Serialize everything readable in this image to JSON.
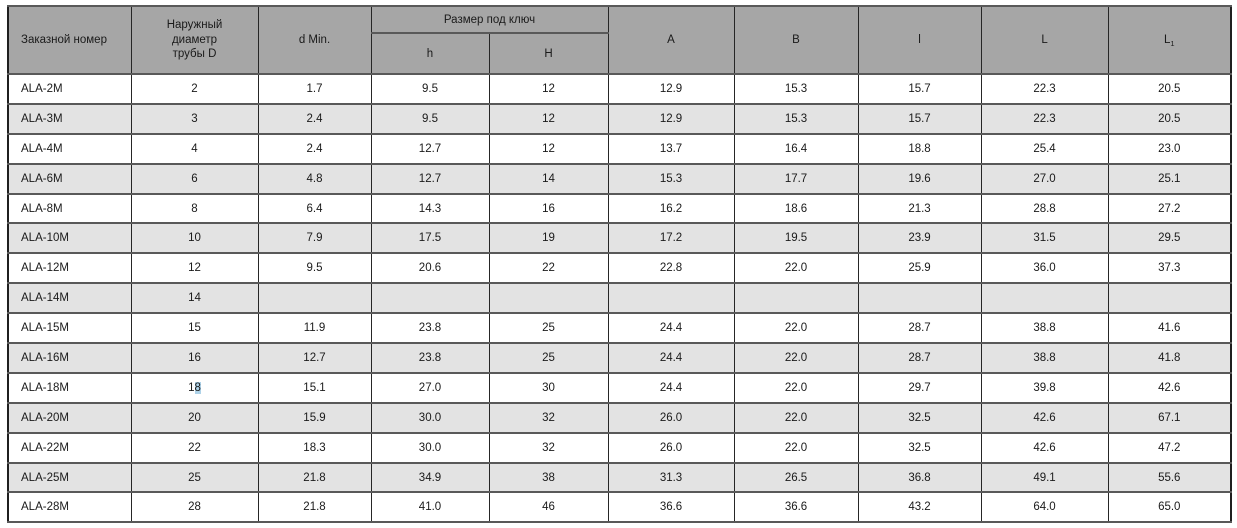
{
  "colors": {
    "header_bg": "#a6a6a6",
    "stripe_bg": "#e3e3e3",
    "selection_bg": "#aed2e8"
  },
  "table": {
    "header": {
      "order": "Заказной номер",
      "diameter": "Наружный\nдиаметр\nтрубы D",
      "d_min": "d Min.",
      "wrench_group": "Размер под ключ",
      "h": "h",
      "H": "H",
      "A": "A",
      "B": "B",
      "l": "l",
      "L": "L",
      "L1_base": "L",
      "L1_sub": "1"
    },
    "col_keys": [
      "order",
      "D",
      "d_min",
      "h",
      "H",
      "A",
      "B",
      "l",
      "L",
      "L1"
    ],
    "selection": {
      "row_order": "ALA-18M",
      "col": "D",
      "before": "1",
      "selected": "8",
      "after": ""
    },
    "rows": [
      {
        "order": "ALA-2M",
        "D": "2",
        "d_min": "1.7",
        "h": "9.5",
        "H": "12",
        "A": "12.9",
        "B": "15.3",
        "l": "15.7",
        "L": "22.3",
        "L1": "20.5"
      },
      {
        "order": "ALA-3M",
        "D": "3",
        "d_min": "2.4",
        "h": "9.5",
        "H": "12",
        "A": "12.9",
        "B": "15.3",
        "l": "15.7",
        "L": "22.3",
        "L1": "20.5"
      },
      {
        "order": "ALA-4M",
        "D": "4",
        "d_min": "2.4",
        "h": "12.7",
        "H": "12",
        "A": "13.7",
        "B": "16.4",
        "l": "18.8",
        "L": "25.4",
        "L1": "23.0"
      },
      {
        "order": "ALA-6M",
        "D": "6",
        "d_min": "4.8",
        "h": "12.7",
        "H": "14",
        "A": "15.3",
        "B": "17.7",
        "l": "19.6",
        "L": "27.0",
        "L1": "25.1"
      },
      {
        "order": "ALA-8M",
        "D": "8",
        "d_min": "6.4",
        "h": "14.3",
        "H": "16",
        "A": "16.2",
        "B": "18.6",
        "l": "21.3",
        "L": "28.8",
        "L1": "27.2"
      },
      {
        "order": "ALA-10M",
        "D": "10",
        "d_min": "7.9",
        "h": "17.5",
        "H": "19",
        "A": "17.2",
        "B": "19.5",
        "l": "23.9",
        "L": "31.5",
        "L1": "29.5"
      },
      {
        "order": "ALA-12M",
        "D": "12",
        "d_min": "9.5",
        "h": "20.6",
        "H": "22",
        "A": "22.8",
        "B": "22.0",
        "l": "25.9",
        "L": "36.0",
        "L1": "37.3"
      },
      {
        "order": "ALA-14M",
        "D": "14",
        "d_min": "",
        "h": "",
        "H": "",
        "A": "",
        "B": "",
        "l": "",
        "L": "",
        "L1": ""
      },
      {
        "order": "ALA-15M",
        "D": "15",
        "d_min": "11.9",
        "h": "23.8",
        "H": "25",
        "A": "24.4",
        "B": "22.0",
        "l": "28.7",
        "L": "38.8",
        "L1": "41.6"
      },
      {
        "order": "ALA-16M",
        "D": "16",
        "d_min": "12.7",
        "h": "23.8",
        "H": "25",
        "A": "24.4",
        "B": "22.0",
        "l": "28.7",
        "L": "38.8",
        "L1": "41.8"
      },
      {
        "order": "ALA-18M",
        "D": "18",
        "d_min": "15.1",
        "h": "27.0",
        "H": "30",
        "A": "24.4",
        "B": "22.0",
        "l": "29.7",
        "L": "39.8",
        "L1": "42.6"
      },
      {
        "order": "ALA-20M",
        "D": "20",
        "d_min": "15.9",
        "h": "30.0",
        "H": "32",
        "A": "26.0",
        "B": "22.0",
        "l": "32.5",
        "L": "42.6",
        "L1": "67.1"
      },
      {
        "order": "ALA-22M",
        "D": "22",
        "d_min": "18.3",
        "h": "30.0",
        "H": "32",
        "A": "26.0",
        "B": "22.0",
        "l": "32.5",
        "L": "42.6",
        "L1": "47.2"
      },
      {
        "order": "ALA-25M",
        "D": "25",
        "d_min": "21.8",
        "h": "34.9",
        "H": "38",
        "A": "31.3",
        "B": "26.5",
        "l": "36.8",
        "L": "49.1",
        "L1": "55.6"
      },
      {
        "order": "ALA-28M",
        "D": "28",
        "d_min": "21.8",
        "h": "41.0",
        "H": "46",
        "A": "36.6",
        "B": "36.6",
        "l": "43.2",
        "L": "64.0",
        "L1": "65.0"
      }
    ]
  }
}
